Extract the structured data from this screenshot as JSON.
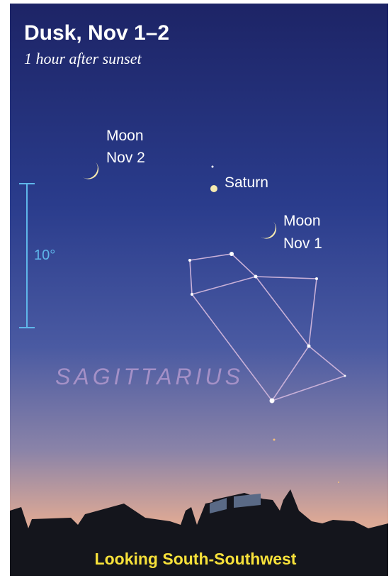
{
  "header": {
    "title": "Dusk, Nov 1–2",
    "subtitle": "1 hour after sunset"
  },
  "objects": [
    {
      "lines": [
        "Moon",
        "Nov 2"
      ]
    },
    {
      "lines": [
        "Saturn"
      ]
    },
    {
      "lines": [
        "Moon",
        "Nov 1"
      ]
    }
  ],
  "scale": {
    "label": "10°"
  },
  "constellation": {
    "name": "SAGITTARIUS"
  },
  "footer": {
    "direction": "Looking South-Southwest"
  }
}
